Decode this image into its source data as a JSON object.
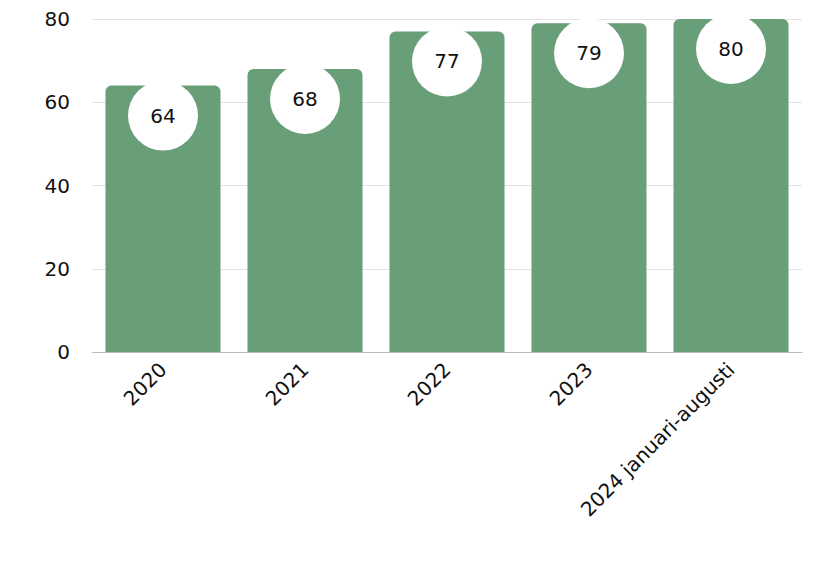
{
  "chart_data": {
    "type": "bar",
    "categories": [
      "2020",
      "2021",
      "2022",
      "2023",
      "2024 januari-augusti"
    ],
    "values": [
      64,
      68,
      77,
      79,
      80
    ],
    "color": "#689f78",
    "ylim": [
      0,
      80
    ],
    "yticks": [
      0,
      20,
      40,
      60,
      80
    ],
    "grid": true,
    "data_labels": true
  }
}
